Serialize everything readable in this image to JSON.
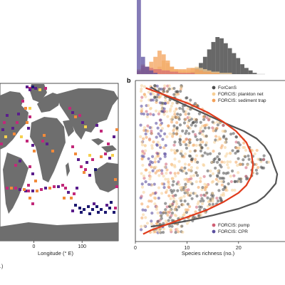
{
  "figure": {
    "panel_b_letter": "b",
    "left_crop_note": ".)"
  },
  "colors": {
    "forcens": "#4d4d4d",
    "plankton_net": "#f6cf95",
    "sediment_trap": "#f3a15a",
    "pump": "#cf5f74",
    "cpr": "#5b4f9f",
    "forcens_line": "#555555",
    "forcis_line": "#e03c1c",
    "land": "#6e6e6e",
    "map_purple": "#5b1e8c",
    "map_magenta": "#c2297a",
    "map_orange": "#f28a3a",
    "map_yellow": "#f6d04d",
    "map_navy": "#1c1870"
  },
  "chart_data": [
    {
      "id": "map",
      "type": "heatmap",
      "xlabel": "Longitude (° E)",
      "x_ticks": [
        "0",
        "100"
      ],
      "x_tick_values": [
        0,
        100
      ],
      "xlim": [
        -70,
        175
      ],
      "ylim": [
        -80,
        80
      ],
      "grid": false
    },
    {
      "id": "top-histogram",
      "type": "bar",
      "description_of_series": "overlapping histograms of species richness",
      "bins": [
        0,
        1,
        2,
        3,
        4,
        5,
        6,
        7,
        8,
        9,
        10,
        11,
        12,
        13,
        14,
        15,
        16,
        17,
        18,
        19,
        20,
        21,
        22,
        23,
        24,
        25,
        26,
        27,
        28,
        29,
        30
      ],
      "series": [
        {
          "name": "ForCenS",
          "values": [
            0,
            0,
            0,
            0,
            0,
            0,
            0,
            0,
            0,
            0,
            0,
            0,
            0,
            2,
            5,
            9,
            14,
            20,
            26,
            30,
            29,
            25,
            21,
            17,
            13,
            8,
            5,
            3,
            1,
            0,
            0
          ]
        },
        {
          "name": "FORCIS: plankton net",
          "values": [
            4,
            8,
            3,
            3,
            4,
            6,
            11,
            9,
            6,
            4,
            3,
            3,
            3,
            5,
            6,
            5,
            4,
            3,
            2,
            2,
            1,
            1,
            1,
            0,
            0,
            0,
            0,
            0,
            0,
            0,
            0
          ]
        },
        {
          "name": "FORCIS: sediment trap",
          "values": [
            2,
            5,
            6,
            10,
            14,
            19,
            16,
            11,
            6,
            4,
            4,
            4,
            5,
            5,
            4,
            3,
            2,
            2,
            1,
            1,
            0,
            0,
            0,
            0,
            0,
            0,
            0,
            0,
            0,
            0,
            0
          ]
        },
        {
          "name": "FORCIS: pump",
          "values": [
            3,
            7,
            6,
            5,
            4,
            4,
            3,
            3,
            2,
            2,
            1,
            1,
            1,
            1,
            0,
            0,
            0,
            0,
            0,
            0,
            0,
            0,
            0,
            0,
            0,
            0,
            0,
            0,
            0,
            0,
            0
          ]
        },
        {
          "name": "FORCIS: CPR",
          "values": [
            60,
            14,
            6,
            3,
            1,
            0,
            0,
            0,
            0,
            0,
            0,
            0,
            0,
            0,
            0,
            0,
            0,
            0,
            0,
            0,
            0,
            0,
            0,
            0,
            0,
            0,
            0,
            0,
            0,
            0,
            0
          ]
        }
      ],
      "xlim": [
        0,
        30
      ]
    },
    {
      "id": "panel-b",
      "type": "scatter",
      "xlabel": "Species richness (no.)",
      "x_ticks": [
        "0",
        "10",
        "20"
      ],
      "x_tick_values": [
        0,
        10,
        20
      ],
      "xlim": [
        0,
        29
      ],
      "grid": false,
      "legend_top": [
        "ForCenS",
        "FORCIS: plankton net",
        "FORCIS: sediment trap"
      ],
      "legend_bottom": [
        "FORCIS: pump",
        "FORCIS: CPR"
      ],
      "legend_placement": "top-right and bottom-right",
      "lines": [
        {
          "name": "ForCenS",
          "x": [
            3,
            6,
            10,
            14,
            18,
            21,
            23.5,
            25,
            26.2,
            26.8,
            27.5,
            27.2,
            26,
            25,
            23.5,
            20,
            15,
            10,
            6,
            3
          ],
          "y": [
            85,
            75,
            65,
            55,
            45,
            38,
            30,
            22,
            12,
            2,
            -8,
            -18,
            -26,
            -32,
            -38,
            -45,
            -52,
            -58,
            -62,
            -64
          ]
        },
        {
          "name": "FORCIS",
          "x": [
            2,
            5,
            10,
            14,
            17,
            19.5,
            21.5,
            22.5,
            22.8,
            22.5,
            21.5,
            20,
            17,
            14,
            10,
            6,
            3,
            1.5
          ],
          "y": [
            84,
            78,
            68,
            58,
            48,
            38,
            26,
            14,
            2,
            -10,
            -20,
            -28,
            -38,
            -46,
            -54,
            -62,
            -68,
            -72
          ]
        }
      ]
    }
  ]
}
